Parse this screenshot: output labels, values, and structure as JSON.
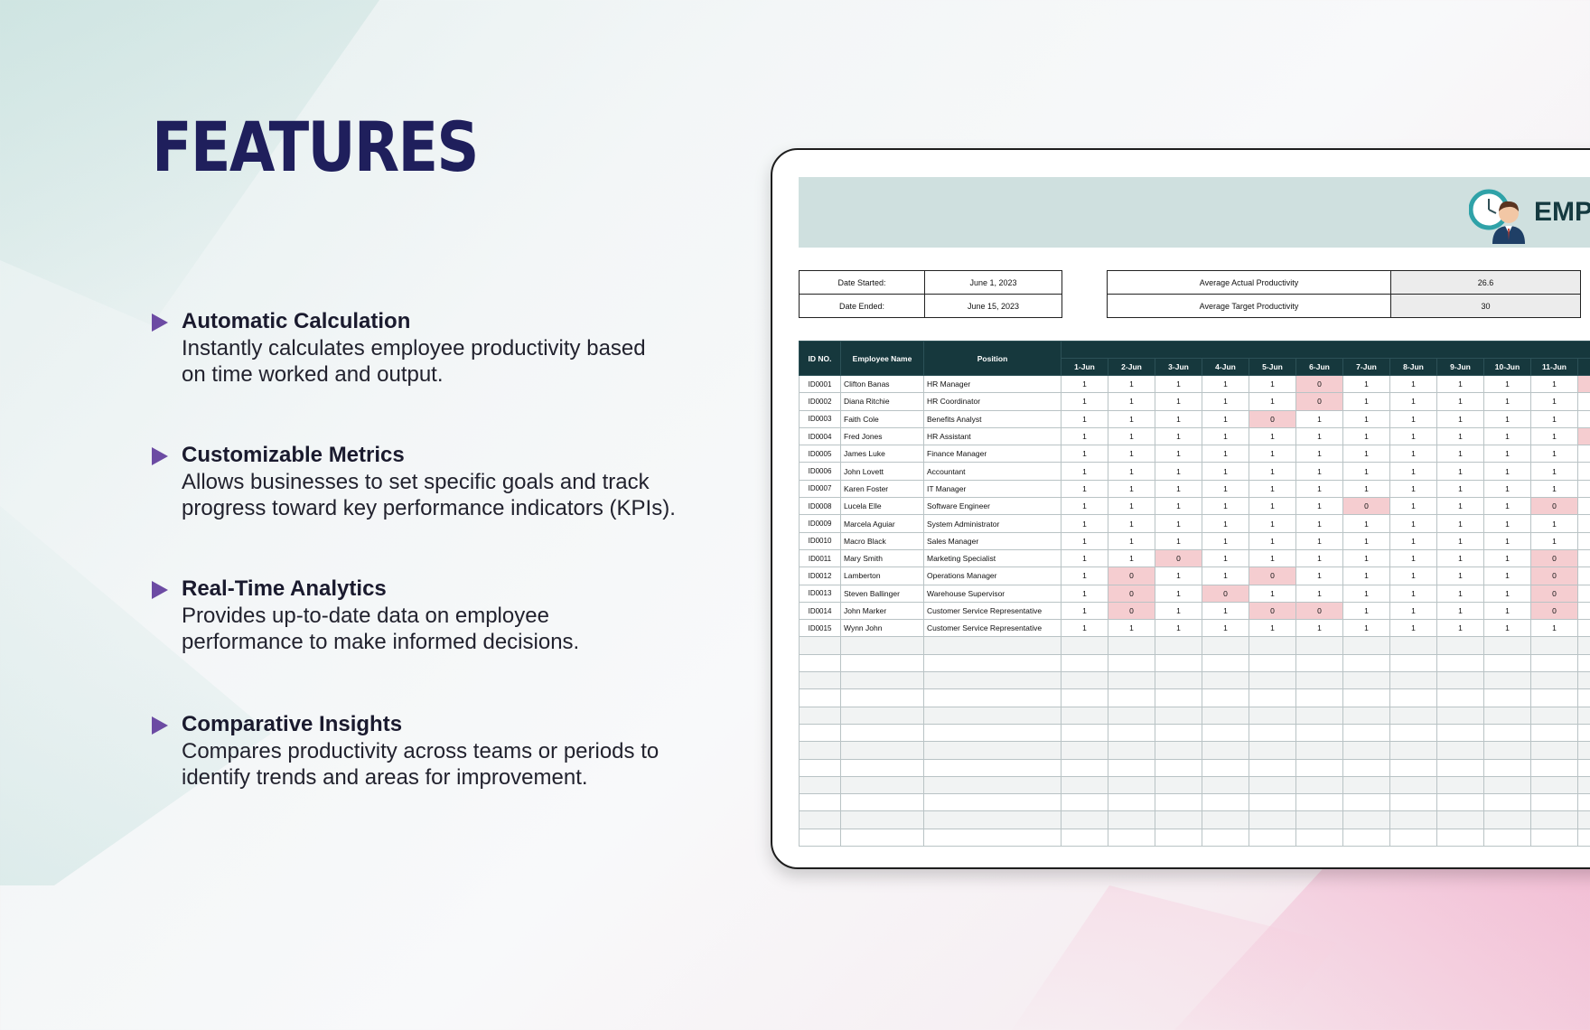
{
  "features": {
    "title": "FEATURES",
    "items": [
      {
        "title": "Automatic Calculation",
        "desc1": "Instantly calculates employee productivity based",
        "desc2": "on time worked and output."
      },
      {
        "title": "Customizable Metrics",
        "desc1": "Allows businesses to set specific goals and track",
        "desc2": "progress toward key performance indicators (KPIs)."
      },
      {
        "title": "Real-Time Analytics",
        "desc1": "Provides up-to-date data on employee",
        "desc2": "performance to make informed decisions."
      },
      {
        "title": "Comparative Insights",
        "desc1": "Compares productivity across teams or periods to",
        "desc2": "identify trends and areas for improvement."
      }
    ]
  },
  "sheet": {
    "banner_title": "EMPLO",
    "logo_icon": "clock-employee-icon",
    "date_started_label": "Date Started:",
    "date_started_value": "June 1, 2023",
    "date_ended_label": "Date Ended:",
    "date_ended_value": "June 15, 2023",
    "avg_actual_label": "Average Actual Productivity",
    "avg_actual_value": "26.6",
    "avg_target_label": "Average Target Productivity",
    "avg_target_value": "30",
    "headers": {
      "id": "ID NO.",
      "name": "Employee Name",
      "position": "Position"
    },
    "days": [
      "1-Jun",
      "2-Jun",
      "3-Jun",
      "4-Jun",
      "5-Jun",
      "6-Jun",
      "7-Jun",
      "8-Jun",
      "9-Jun",
      "10-Jun",
      "11-Jun"
    ],
    "rows": [
      {
        "id": "ID0001",
        "name": "Clifton Banas",
        "position": "HR Manager",
        "v": [
          "1",
          "1",
          "1",
          "1",
          "1",
          "0",
          "1",
          "1",
          "1",
          "1",
          "1"
        ],
        "edge": true
      },
      {
        "id": "ID0002",
        "name": "Diana Ritchie",
        "position": "HR Coordinator",
        "v": [
          "1",
          "1",
          "1",
          "1",
          "1",
          "0",
          "1",
          "1",
          "1",
          "1",
          "1"
        ],
        "edge": false
      },
      {
        "id": "ID0003",
        "name": "Faith Cole",
        "position": "Benefits Analyst",
        "v": [
          "1",
          "1",
          "1",
          "1",
          "0",
          "1",
          "1",
          "1",
          "1",
          "1",
          "1"
        ],
        "edge": false
      },
      {
        "id": "ID0004",
        "name": "Fred Jones",
        "position": "HR Assistant",
        "v": [
          "1",
          "1",
          "1",
          "1",
          "1",
          "1",
          "1",
          "1",
          "1",
          "1",
          "1"
        ],
        "edge": true
      },
      {
        "id": "ID0005",
        "name": "James Luke",
        "position": "Finance Manager",
        "v": [
          "1",
          "1",
          "1",
          "1",
          "1",
          "1",
          "1",
          "1",
          "1",
          "1",
          "1"
        ],
        "edge": false
      },
      {
        "id": "ID0006",
        "name": "John Lovett",
        "position": "Accountant",
        "v": [
          "1",
          "1",
          "1",
          "1",
          "1",
          "1",
          "1",
          "1",
          "1",
          "1",
          "1"
        ],
        "edge": false
      },
      {
        "id": "ID0007",
        "name": "Karen Foster",
        "position": "IT Manager",
        "v": [
          "1",
          "1",
          "1",
          "1",
          "1",
          "1",
          "1",
          "1",
          "1",
          "1",
          "1"
        ],
        "edge": false
      },
      {
        "id": "ID0008",
        "name": "Lucela Elle",
        "position": "Software Engineer",
        "v": [
          "1",
          "1",
          "1",
          "1",
          "1",
          "1",
          "0",
          "1",
          "1",
          "1",
          "0"
        ],
        "edge": false
      },
      {
        "id": "ID0009",
        "name": "Marcela Aguiar",
        "position": "System Administrator",
        "v": [
          "1",
          "1",
          "1",
          "1",
          "1",
          "1",
          "1",
          "1",
          "1",
          "1",
          "1"
        ],
        "edge": false
      },
      {
        "id": "ID0010",
        "name": "Macro Black",
        "position": "Sales Manager",
        "v": [
          "1",
          "1",
          "1",
          "1",
          "1",
          "1",
          "1",
          "1",
          "1",
          "1",
          "1"
        ],
        "edge": false
      },
      {
        "id": "ID0011",
        "name": "Mary Smith",
        "position": "Marketing Specialist",
        "v": [
          "1",
          "1",
          "0",
          "1",
          "1",
          "1",
          "1",
          "1",
          "1",
          "1",
          "0"
        ],
        "edge": false
      },
      {
        "id": "ID0012",
        "name": "Lamberton",
        "position": "Operations Manager",
        "v": [
          "1",
          "0",
          "1",
          "1",
          "0",
          "1",
          "1",
          "1",
          "1",
          "1",
          "0"
        ],
        "edge": false
      },
      {
        "id": "ID0013",
        "name": "Steven Ballinger",
        "position": "Warehouse Supervisor",
        "v": [
          "1",
          "0",
          "1",
          "0",
          "1",
          "1",
          "1",
          "1",
          "1",
          "1",
          "0"
        ],
        "edge": false
      },
      {
        "id": "ID0014",
        "name": "John Marker",
        "position": "Customer Service Representative",
        "v": [
          "1",
          "0",
          "1",
          "1",
          "0",
          "0",
          "1",
          "1",
          "1",
          "1",
          "0"
        ],
        "edge": false
      },
      {
        "id": "ID0015",
        "name": "Wynn John",
        "position": "Customer Service Representative",
        "v": [
          "1",
          "1",
          "1",
          "1",
          "1",
          "1",
          "1",
          "1",
          "1",
          "1",
          "1"
        ],
        "edge": false
      }
    ],
    "empty_rows": 12,
    "colors": {
      "header": "#16383d",
      "banner": "#cfe0df",
      "zero_highlight": "#f5cdd0",
      "title": "#1f1f5c",
      "arrow": "#6c4ba3"
    }
  }
}
